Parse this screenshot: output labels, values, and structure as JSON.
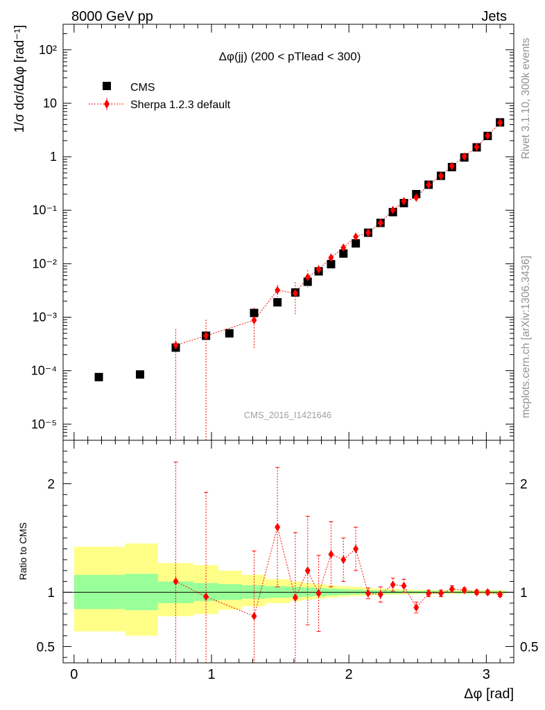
{
  "header": {
    "left": "8000 GeV pp",
    "right": "Jets"
  },
  "side_labels": {
    "top": "Rivet 3.1.10,  300k events",
    "bottom": "mcplots.cern.ch [arXiv:1306.3436]"
  },
  "watermark": "CMS_2016_I1421646",
  "colors": {
    "mc": "#ff0000",
    "data": "#000000",
    "band_inner": "#99ff99",
    "band_outer": "#ffff88"
  },
  "chart_data": [
    {
      "type": "scatter",
      "panel": "main",
      "title": "Δφ(jj) (200 < pTlead <  300)",
      "ylabel": "1/σ dσ/dΔφ [rad⁻¹]",
      "yscale": "log",
      "ylim": [
        5e-06,
        300
      ],
      "xlim": [
        -0.08,
        3.2
      ],
      "legend_position": "top-left",
      "y_ticks": [
        "10⁻⁵",
        "10⁻⁴",
        "10⁻³",
        "10⁻²",
        "10⁻¹",
        "1",
        "10",
        "10²"
      ],
      "series": [
        {
          "name": "CMS",
          "x": [
            0.18,
            0.48,
            0.74,
            0.96,
            1.13,
            1.31,
            1.48,
            1.61,
            1.7,
            1.78,
            1.87,
            1.96,
            2.05,
            2.14,
            2.23,
            2.32,
            2.4,
            2.49,
            2.58,
            2.67,
            2.75,
            2.84,
            2.93,
            3.01,
            3.1
          ],
          "values": [
            7.6e-05,
            8.5e-05,
            0.00027,
            0.00045,
            0.0005,
            0.0012,
            0.0019,
            0.0029,
            0.0046,
            0.0072,
            0.0098,
            0.0155,
            0.024,
            0.038,
            0.058,
            0.092,
            0.136,
            0.2,
            0.3,
            0.44,
            0.64,
            0.97,
            1.5,
            2.45,
            4.4
          ]
        },
        {
          "name": "Sherpa 1.2.3 default",
          "x": [
            0.74,
            0.96,
            1.31,
            1.48,
            1.61,
            1.7,
            1.78,
            1.87,
            1.96,
            2.05,
            2.14,
            2.23,
            2.32,
            2.4,
            2.49,
            2.58,
            2.67,
            2.75,
            2.84,
            2.93,
            3.01,
            3.1
          ],
          "values": [
            0.0003,
            0.00045,
            0.00088,
            0.0032,
            0.0028,
            0.0056,
            0.0078,
            0.013,
            0.02,
            0.032,
            0.038,
            0.058,
            0.101,
            0.148,
            0.172,
            0.3,
            0.44,
            0.67,
            1.01,
            1.52,
            2.47,
            4.35
          ],
          "err_low": [
            0.0003,
            0.00045,
            0.00062,
            0.0008,
            0.0017,
            0.002,
            0.0016,
            0.0026,
            0.003,
            0.0032,
            0.003,
            0.004,
            0.008,
            0.01,
            0.01,
            0.015,
            0.02,
            0.04,
            0.05,
            0.07,
            0.1,
            0.18
          ],
          "err_high": [
            0.0003,
            0.00045,
            0.00062,
            0.0008,
            0.0017,
            0.002,
            0.0016,
            0.0026,
            0.003,
            0.0032,
            0.003,
            0.004,
            0.008,
            0.01,
            0.01,
            0.015,
            0.02,
            0.04,
            0.05,
            0.07,
            0.1,
            0.18
          ]
        }
      ]
    },
    {
      "type": "scatter",
      "panel": "ratio",
      "xlabel": "Δφ [rad]",
      "ylabel": "Ratio to CMS",
      "ylim": [
        0.35,
        2.4
      ],
      "xlim": [
        -0.08,
        3.2
      ],
      "y_ticks": [
        "0.5",
        "1",
        "2"
      ],
      "x_ticks": [
        "0",
        "1",
        "2",
        "3"
      ],
      "reference_line": 1,
      "bands": {
        "edges": [
          0,
          0.37,
          0.61,
          0.87,
          1.05,
          1.22,
          1.39,
          1.57,
          1.66,
          1.74,
          1.83,
          1.92,
          2.01,
          2.1,
          2.18,
          2.27,
          2.36,
          2.44,
          2.53,
          2.62,
          2.71,
          2.8,
          2.88,
          2.97,
          3.06,
          3.14
        ],
        "inner_low": [
          0.845,
          0.835,
          0.9,
          0.92,
          0.93,
          0.94,
          0.95,
          0.955,
          0.96,
          0.965,
          0.97,
          0.975,
          0.98,
          0.982,
          0.985,
          0.987,
          0.988,
          0.99,
          0.99,
          0.99,
          0.99,
          0.99,
          0.99,
          0.99,
          0.99
        ],
        "inner_high": [
          1.16,
          1.17,
          1.1,
          1.085,
          1.075,
          1.065,
          1.055,
          1.05,
          1.045,
          1.04,
          1.035,
          1.03,
          1.025,
          1.02,
          1.018,
          1.016,
          1.014,
          1.012,
          1.012,
          1.012,
          1.012,
          1.012,
          1.012,
          1.012,
          1.012
        ],
        "outer_low": [
          0.64,
          0.6,
          0.78,
          0.8,
          0.84,
          0.87,
          0.9,
          0.92,
          0.93,
          0.94,
          0.95,
          0.96,
          0.965,
          0.97,
          0.975,
          0.978,
          0.98,
          0.982,
          0.984,
          0.984,
          0.984,
          0.984,
          0.984,
          0.984,
          0.984
        ],
        "outer_high": [
          1.42,
          1.45,
          1.27,
          1.25,
          1.2,
          1.16,
          1.12,
          1.1,
          1.085,
          1.075,
          1.065,
          1.055,
          1.05,
          1.04,
          1.035,
          1.03,
          1.025,
          1.022,
          1.02,
          1.02,
          1.02,
          1.02,
          1.02,
          1.02,
          1.02
        ]
      },
      "series": [
        {
          "name": "Sherpa 1.2.3 default",
          "x": [
            0.74,
            0.96,
            1.31,
            1.48,
            1.61,
            1.7,
            1.78,
            1.87,
            1.96,
            2.05,
            2.14,
            2.23,
            2.32,
            2.4,
            2.49,
            2.58,
            2.67,
            2.75,
            2.84,
            2.93,
            3.01,
            3.1
          ],
          "values": [
            1.1,
            0.96,
            0.78,
            1.6,
            0.95,
            1.2,
            0.99,
            1.35,
            1.3,
            1.4,
            0.99,
            0.98,
            1.07,
            1.06,
            0.86,
            0.99,
            0.99,
            1.03,
            1.02,
            1.0,
            1.0,
            0.98
          ],
          "err_low": [
            1.1,
            0.96,
            0.6,
            0.55,
            0.6,
            0.5,
            0.35,
            0.3,
            0.2,
            0.2,
            0.05,
            0.07,
            0.06,
            0.06,
            0.05,
            0.03,
            0.03,
            0.03,
            0.02,
            0.02,
            0.02,
            0.02
          ],
          "err_high": [
            1.1,
            0.96,
            0.6,
            0.55,
            0.6,
            0.5,
            0.35,
            0.3,
            0.2,
            0.2,
            0.05,
            0.07,
            0.06,
            0.06,
            0.05,
            0.03,
            0.03,
            0.03,
            0.02,
            0.02,
            0.02,
            0.02
          ]
        }
      ]
    }
  ]
}
